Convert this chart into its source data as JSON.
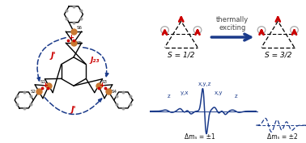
{
  "bg_color": "#ffffff",
  "arrow_color": "#1a3a8a",
  "red_color": "#cc0000",
  "blue_color": "#1a3a8a",
  "black_color": "#111111",
  "thermally_exciting_text": "thermally\nexciting",
  "s_half_label": "S = 1/2",
  "s_threehalves_label": "S = 3/2",
  "delta_ms_1_label": "Δmₛ = ±1",
  "delta_ms_2_label": "Δmₛ = ±2",
  "orange_color": "#c87832"
}
